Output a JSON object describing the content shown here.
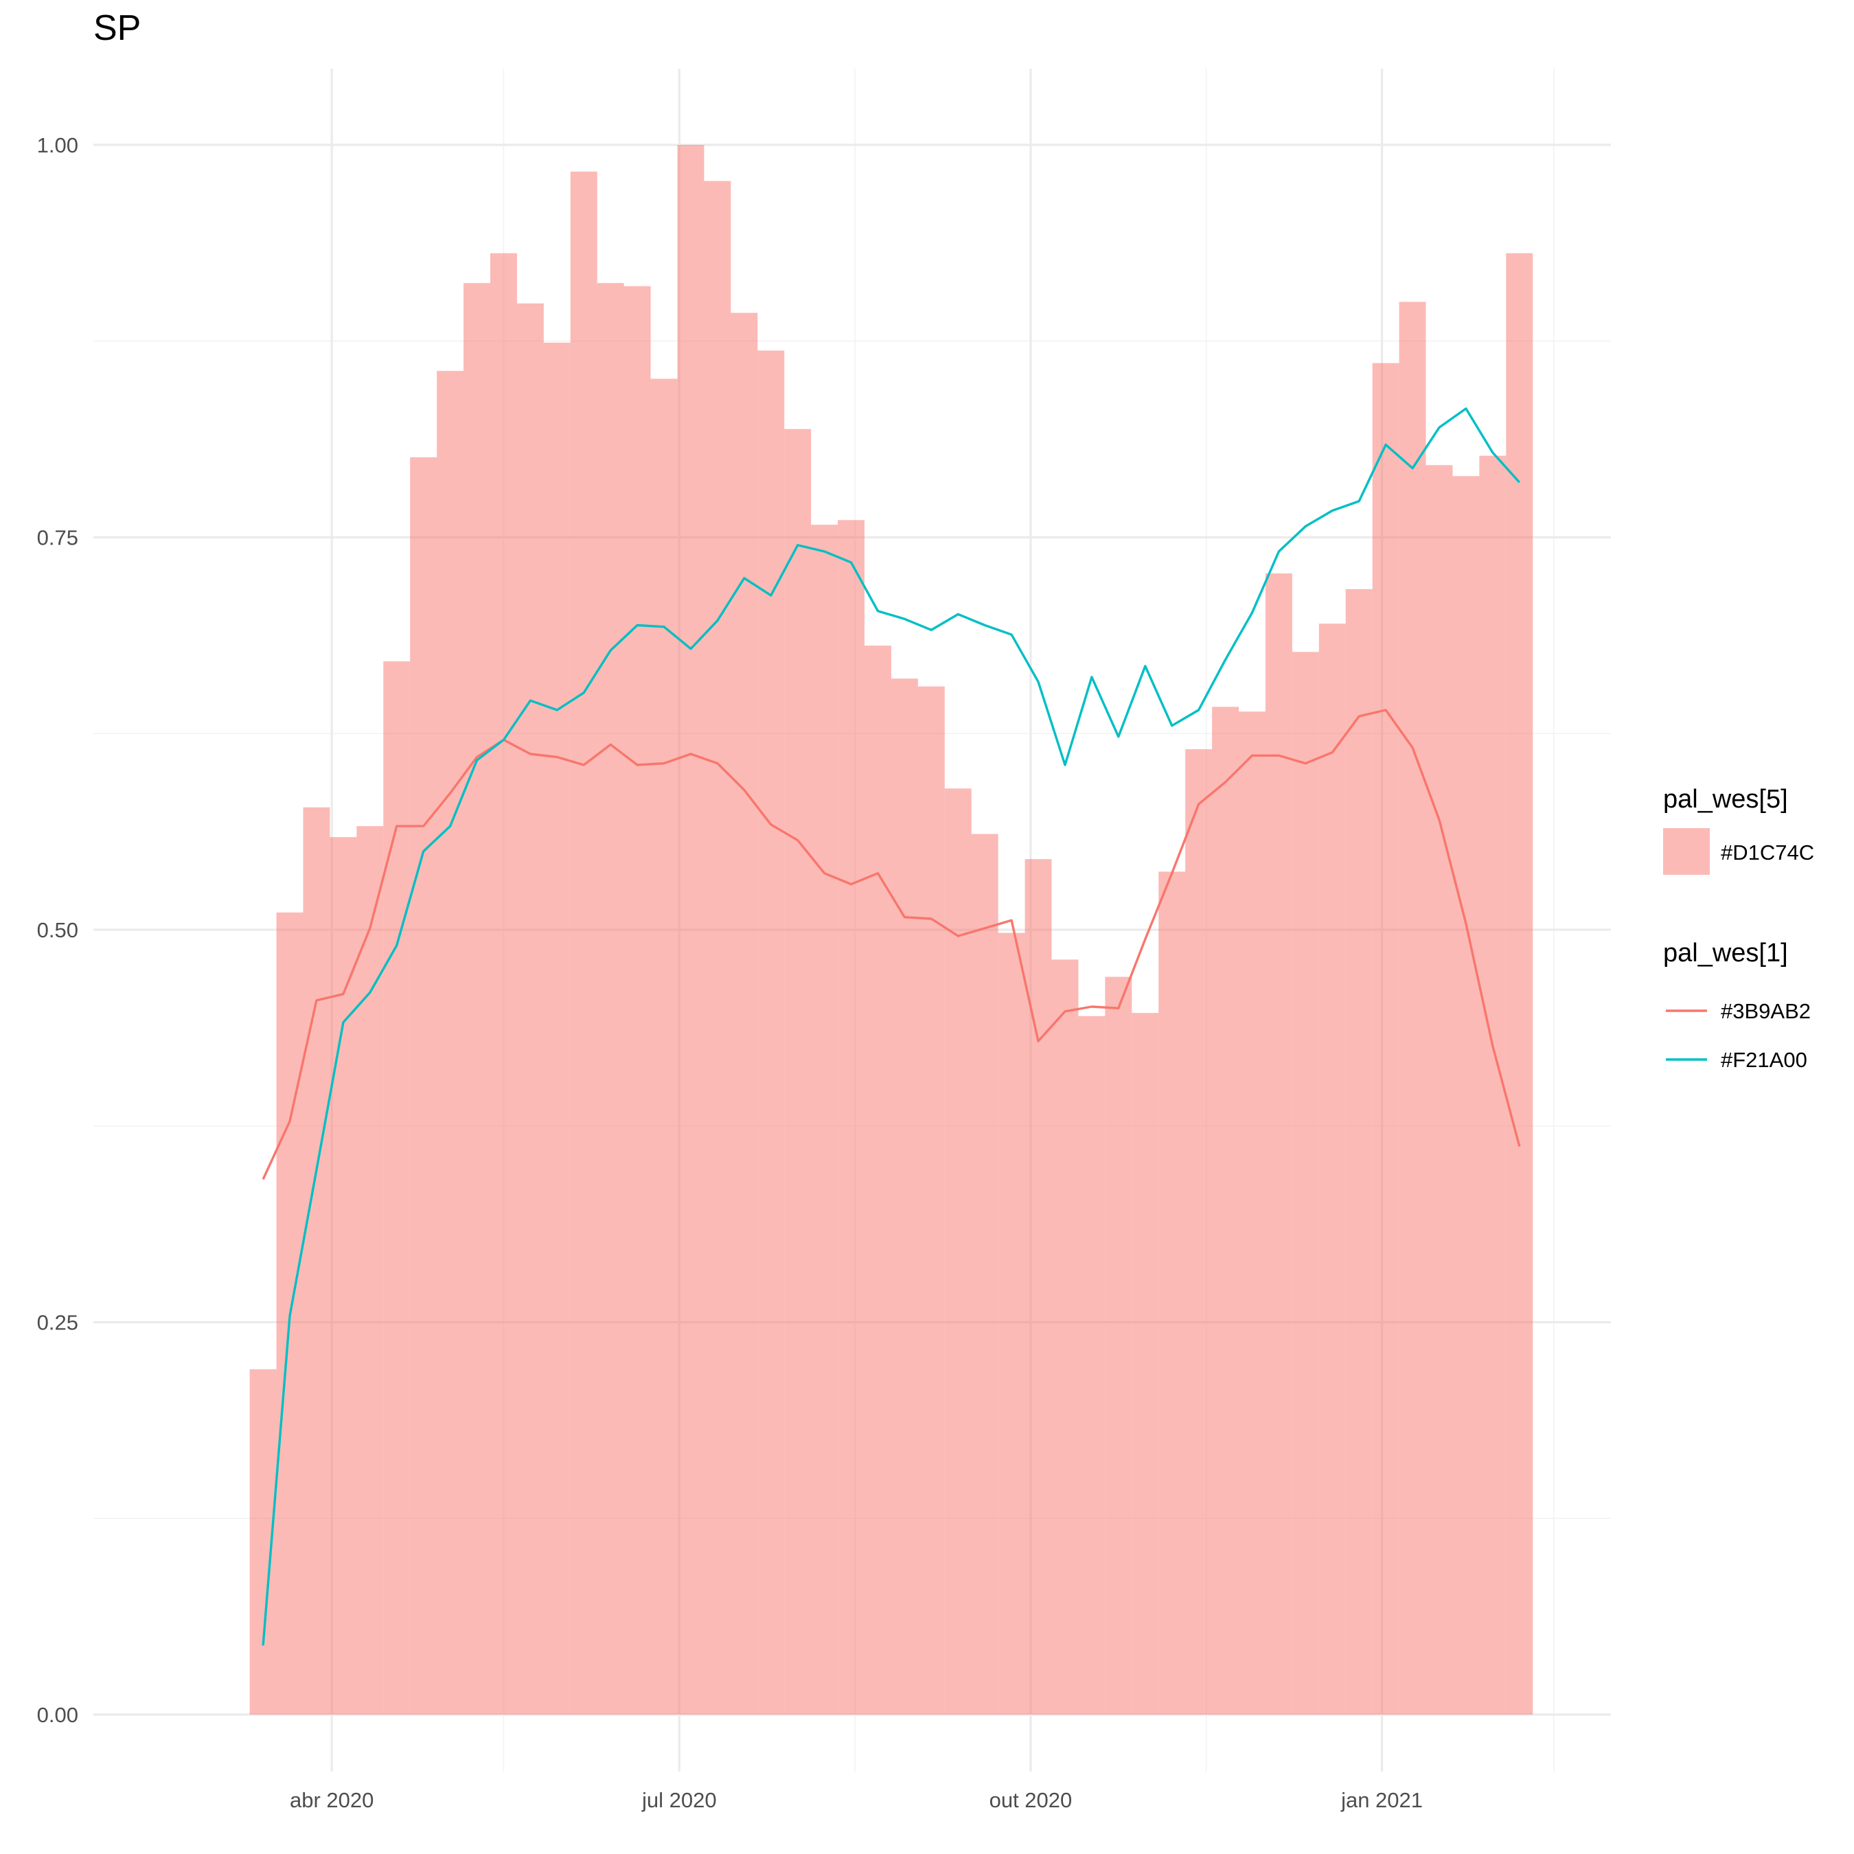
{
  "chart_data": {
    "type": "bar+line",
    "title": "SP",
    "xlabel": "",
    "ylabel": "",
    "ylim": [
      -0.035,
      1.06
    ],
    "yticks": [
      0.0,
      0.25,
      0.5,
      0.75,
      1.0
    ],
    "ytick_labels": [
      "0.00",
      "0.25",
      "0.50",
      "0.75",
      "1.00"
    ],
    "xlim": [
      "2020-02-09",
      "2021-02-26"
    ],
    "xticks": [
      "2020-04-01",
      "2020-07-01",
      "2020-10-01",
      "2021-01-01"
    ],
    "xtick_labels": [
      "abr 2020",
      "jul 2020",
      "out 2020",
      "jan 2021"
    ],
    "x_minor_ticks": [
      "2020-05-16",
      "2020-08-16",
      "2020-11-16",
      "2021-02-15"
    ],
    "grid": true,
    "legend_position": "right",
    "bar_series": {
      "legend_title": "pal_wes[5]",
      "name": "#D1C74C",
      "color": "#F8766D",
      "opacity": 0.5,
      "x": [
        "2020-03-14",
        "2020-03-21",
        "2020-03-28",
        "2020-04-04",
        "2020-04-11",
        "2020-04-18",
        "2020-04-25",
        "2020-05-02",
        "2020-05-09",
        "2020-05-16",
        "2020-05-23",
        "2020-05-30",
        "2020-06-06",
        "2020-06-13",
        "2020-06-20",
        "2020-06-27",
        "2020-07-04",
        "2020-07-11",
        "2020-07-18",
        "2020-07-25",
        "2020-08-01",
        "2020-08-08",
        "2020-08-15",
        "2020-08-22",
        "2020-08-29",
        "2020-09-05",
        "2020-09-12",
        "2020-09-19",
        "2020-09-26",
        "2020-10-03",
        "2020-10-10",
        "2020-10-17",
        "2020-10-24",
        "2020-10-31",
        "2020-11-07",
        "2020-11-14",
        "2020-11-21",
        "2020-11-28",
        "2020-12-05",
        "2020-12-12",
        "2020-12-19",
        "2020-12-26",
        "2021-01-02",
        "2021-01-09",
        "2021-01-16",
        "2021-01-23",
        "2021-01-30",
        "2021-02-06"
      ],
      "values": [
        0.22,
        0.511,
        0.578,
        0.559,
        0.566,
        0.671,
        0.801,
        0.856,
        0.912,
        0.931,
        0.899,
        0.874,
        0.983,
        0.912,
        0.91,
        0.851,
        1.0,
        0.977,
        0.893,
        0.869,
        0.819,
        0.758,
        0.761,
        0.681,
        0.66,
        0.655,
        0.59,
        0.561,
        0.498,
        0.545,
        0.481,
        0.445,
        0.47,
        0.447,
        0.537,
        0.615,
        0.642,
        0.639,
        0.727,
        0.677,
        0.695,
        0.717,
        0.861,
        0.9,
        0.796,
        0.789,
        0.802,
        0.931
      ]
    },
    "line_legend_title": "pal_wes[1]",
    "series": [
      {
        "name": "#3B9AB2",
        "color": "#F8766D",
        "x": [
          "2020-03-14",
          "2020-03-21",
          "2020-03-28",
          "2020-04-04",
          "2020-04-11",
          "2020-04-18",
          "2020-04-25",
          "2020-05-02",
          "2020-05-09",
          "2020-05-16",
          "2020-05-23",
          "2020-05-30",
          "2020-06-06",
          "2020-06-13",
          "2020-06-20",
          "2020-06-27",
          "2020-07-04",
          "2020-07-11",
          "2020-07-18",
          "2020-07-25",
          "2020-08-01",
          "2020-08-08",
          "2020-08-15",
          "2020-08-22",
          "2020-08-29",
          "2020-09-05",
          "2020-09-12",
          "2020-09-19",
          "2020-09-26",
          "2020-10-03",
          "2020-10-10",
          "2020-10-17",
          "2020-10-24",
          "2020-10-31",
          "2020-11-07",
          "2020-11-14",
          "2020-11-21",
          "2020-11-28",
          "2020-12-05",
          "2020-12-12",
          "2020-12-19",
          "2020-12-26",
          "2021-01-02",
          "2021-01-09",
          "2021-01-16",
          "2021-01-23",
          "2021-01-30",
          "2021-02-06"
        ],
        "values": [
          0.341,
          0.378,
          0.455,
          0.459,
          0.501,
          0.566,
          0.566,
          0.587,
          0.61,
          0.621,
          0.612,
          0.61,
          0.605,
          0.618,
          0.605,
          0.606,
          0.612,
          0.606,
          0.589,
          0.567,
          0.557,
          0.536,
          0.529,
          0.536,
          0.508,
          0.507,
          0.496,
          0.501,
          0.506,
          0.429,
          0.448,
          0.451,
          0.45,
          0.494,
          0.536,
          0.58,
          0.594,
          0.611,
          0.611,
          0.606,
          0.613,
          0.636,
          0.64,
          0.616,
          0.57,
          0.504,
          0.426,
          0.362
        ]
      },
      {
        "name": "#F21A00",
        "color": "#00BFC4",
        "x": [
          "2020-03-14",
          "2020-03-21",
          "2020-03-28",
          "2020-04-04",
          "2020-04-11",
          "2020-04-18",
          "2020-04-25",
          "2020-05-02",
          "2020-05-09",
          "2020-05-16",
          "2020-05-23",
          "2020-05-30",
          "2020-06-06",
          "2020-06-13",
          "2020-06-20",
          "2020-06-27",
          "2020-07-04",
          "2020-07-11",
          "2020-07-18",
          "2020-07-25",
          "2020-08-01",
          "2020-08-08",
          "2020-08-15",
          "2020-08-22",
          "2020-08-29",
          "2020-09-05",
          "2020-09-12",
          "2020-09-19",
          "2020-09-26",
          "2020-10-03",
          "2020-10-10",
          "2020-10-17",
          "2020-10-24",
          "2020-10-31",
          "2020-11-07",
          "2020-11-14",
          "2020-11-21",
          "2020-11-28",
          "2020-12-05",
          "2020-12-12",
          "2020-12-19",
          "2020-12-26",
          "2021-01-02",
          "2021-01-09",
          "2021-01-16",
          "2021-01-23",
          "2021-01-30",
          "2021-02-06"
        ],
        "values": [
          0.044,
          0.254,
          0.347,
          0.441,
          0.46,
          0.49,
          0.55,
          0.566,
          0.608,
          0.621,
          0.646,
          0.64,
          0.651,
          0.678,
          0.694,
          0.693,
          0.679,
          0.697,
          0.724,
          0.713,
          0.745,
          0.741,
          0.734,
          0.703,
          0.698,
          0.691,
          0.701,
          0.694,
          0.688,
          0.658,
          0.605,
          0.661,
          0.623,
          0.668,
          0.63,
          0.64,
          0.672,
          0.702,
          0.741,
          0.757,
          0.767,
          0.773,
          0.809,
          0.794,
          0.82,
          0.832,
          0.804,
          0.785
        ]
      }
    ]
  }
}
